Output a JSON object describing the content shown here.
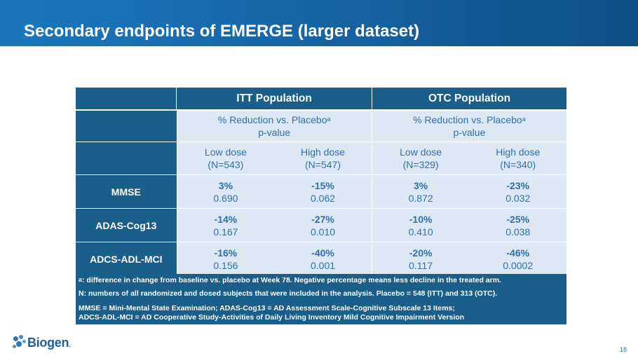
{
  "slide": {
    "title": "Secondary endpoints of EMERGE (larger dataset)",
    "page_number": "18"
  },
  "table": {
    "groups": [
      "ITT Population",
      "OTC Population"
    ],
    "subheader": {
      "line1": "% Reduction vs. Placebo",
      "superscript": "a",
      "line2": "p-value"
    },
    "doses": [
      {
        "name": "Low dose",
        "n": "(N=543)"
      },
      {
        "name": "High dose",
        "n": "(N=547)"
      },
      {
        "name": "Low dose",
        "n": "(N=329)"
      },
      {
        "name": "High dose",
        "n": "(N=340)"
      }
    ],
    "rows": [
      {
        "label": "MMSE",
        "cells": [
          {
            "pct": "3%",
            "p": "0.690"
          },
          {
            "pct": "-15%",
            "p": "0.062"
          },
          {
            "pct": "3%",
            "p": "0.872"
          },
          {
            "pct": "-23%",
            "p": "0.032"
          }
        ]
      },
      {
        "label": "ADAS-Cog13",
        "cells": [
          {
            "pct": "-14%",
            "p": "0.167"
          },
          {
            "pct": "-27%",
            "p": "0.010"
          },
          {
            "pct": "-10%",
            "p": "0.410"
          },
          {
            "pct": "-25%",
            "p": "0.038"
          }
        ]
      },
      {
        "label": "ADCS-ADL-MCI",
        "cells": [
          {
            "pct": "-16%",
            "p": "0.156"
          },
          {
            "pct": "-40%",
            "p": "0.001"
          },
          {
            "pct": "-20%",
            "p": "0.117"
          },
          {
            "pct": "-46%",
            "p": "0.0002"
          }
        ]
      }
    ]
  },
  "notes": {
    "note_a_marker": "a",
    "note_a": ": difference in change from baseline vs. placebo at Week 78. Negative percentage means less decline in the treated arm.",
    "note_n": "N: numbers of all randomized and dosed subjects that were included in the analysis. Placebo = 548 (ITT) and 313 (OTC).",
    "abbrev_line1": "MMSE = Mini-Mental State Examination; ADAS-Cog13 = AD Assessment Scale-Cognitive Subscale 13 Items;",
    "abbrev_line2": "ADCS-ADL-MCI = AD Cooperative Study-Activities of Daily Living Inventory Mild Cognitive Impairment Version"
  },
  "logo": {
    "text": "Biogen",
    "trademark": "."
  },
  "colors": {
    "title_bar": "#1866a6",
    "table_dark": "#1a5e8a",
    "table_light": "#dce8f3",
    "value_text": "#2e6fb0"
  }
}
